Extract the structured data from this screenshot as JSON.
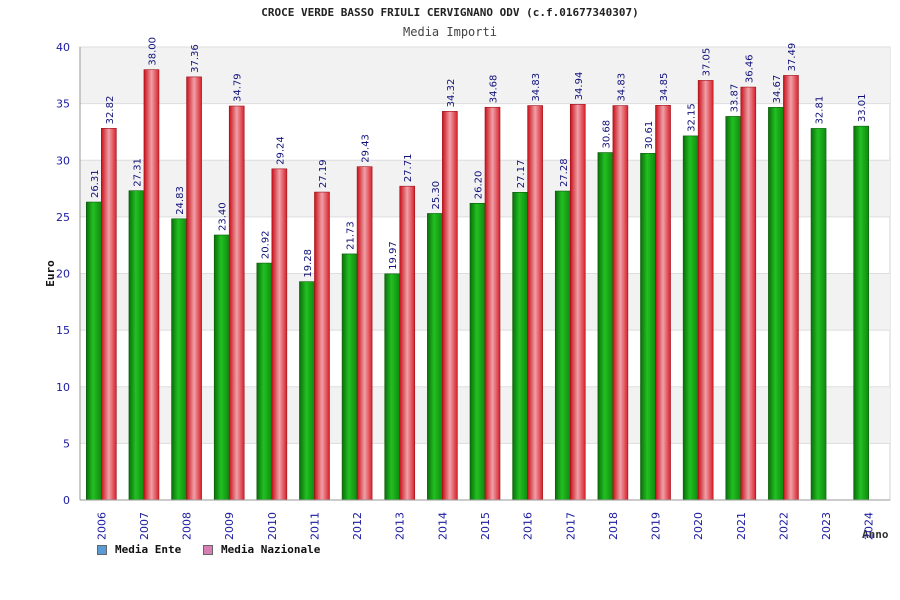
{
  "chart_data": {
    "type": "bar",
    "title": "CROCE VERDE BASSO FRIULI CERVIGNANO ODV (c.f.01677340307)",
    "subtitle": "Media Importi",
    "xlabel": "Anno",
    "ylabel": "Euro",
    "ylim": [
      0,
      40
    ],
    "yticks": [
      0,
      5,
      10,
      15,
      20,
      25,
      30,
      35,
      40
    ],
    "categories": [
      "2006",
      "2007",
      "2008",
      "2009",
      "2010",
      "2011",
      "2012",
      "2013",
      "2014",
      "2015",
      "2016",
      "2017",
      "2018",
      "2019",
      "2020",
      "2021",
      "2022",
      "2023",
      "2024"
    ],
    "series": [
      {
        "name": "Media Ente",
        "color": "#1aa01a",
        "values": [
          26.31,
          27.31,
          24.83,
          23.4,
          20.92,
          19.28,
          21.73,
          19.97,
          25.3,
          26.2,
          27.17,
          27.28,
          30.68,
          30.61,
          32.15,
          33.87,
          34.67,
          32.81,
          33.01
        ],
        "labels": [
          "26.31",
          "27.31",
          "24.83",
          "23.40",
          "20.92",
          "19.28",
          "21.73",
          "19.97",
          "25.30",
          "26.20",
          "27.17",
          "27.28",
          "30.68",
          "30.61",
          "32.15",
          "33.87",
          "34.67",
          "32.81",
          "33.01"
        ]
      },
      {
        "name": "Media Nazionale",
        "color": "#e8202a",
        "values": [
          32.82,
          38.0,
          37.36,
          34.79,
          29.24,
          27.19,
          29.43,
          27.71,
          34.32,
          34.68,
          34.83,
          34.94,
          34.83,
          34.85,
          37.05,
          36.46,
          37.49,
          null,
          null
        ],
        "labels": [
          "32.82",
          "38.00",
          "37.36",
          "34.79",
          "29.24",
          "27.19",
          "29.43",
          "27.71",
          "34.32",
          "34.68",
          "34.83",
          "34.94",
          "34.83",
          "34.85",
          "37.05",
          "36.46",
          "37.49",
          null,
          null
        ]
      }
    ],
    "legend": [
      {
        "label": "Media Ente",
        "color": "#5b9bd5"
      },
      {
        "label": "Media Nazionale",
        "color": "#d77fb3"
      }
    ],
    "grid": true,
    "legend_position": "bottom-left"
  }
}
